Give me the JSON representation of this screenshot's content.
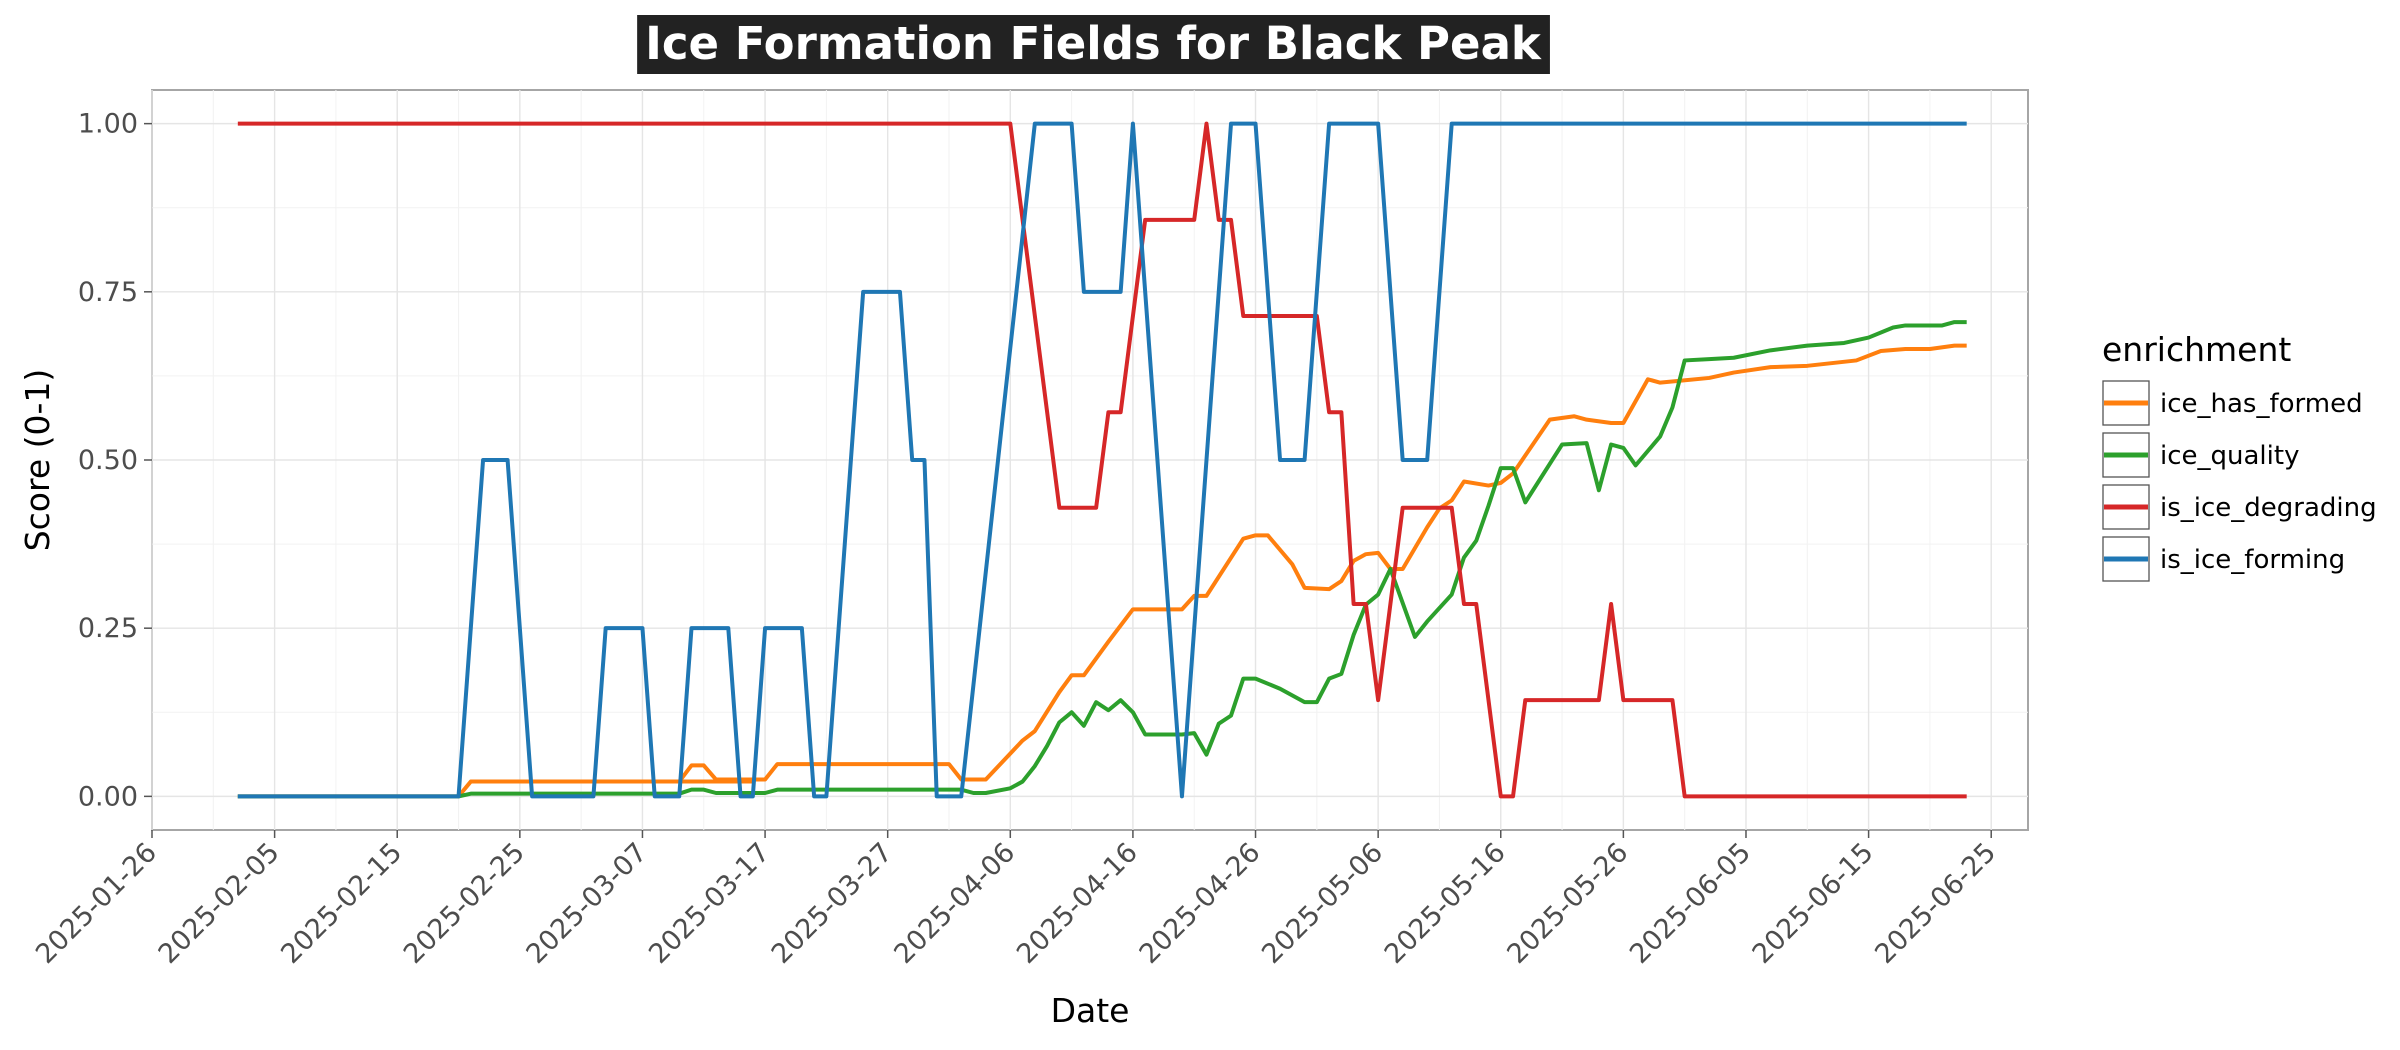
{
  "chart_data": {
    "type": "line",
    "title": "Ice Formation Fields for Black Peak",
    "xlabel": "Date",
    "ylabel": "Score (0-1)",
    "x_type": "date",
    "xlim": [
      "2025-01-26",
      "2025-06-28"
    ],
    "ylim": [
      -0.05,
      1.05
    ],
    "x_ticks": [
      "2025-01-26",
      "2025-02-05",
      "2025-02-15",
      "2025-02-25",
      "2025-03-07",
      "2025-03-17",
      "2025-03-27",
      "2025-04-06",
      "2025-04-16",
      "2025-04-26",
      "2025-05-06",
      "2025-05-16",
      "2025-05-26",
      "2025-06-05",
      "2025-06-15",
      "2025-06-25"
    ],
    "y_ticks": [
      "0.00",
      "0.25",
      "0.50",
      "0.75",
      "1.00"
    ],
    "grid": true,
    "legend_title": "enrichment",
    "legend_position": "right",
    "series": [
      {
        "name": "ice_has_formed",
        "color": "#ff7f0e",
        "points": [
          [
            "2025-02-02",
            0
          ],
          [
            "2025-02-20",
            0
          ],
          [
            "2025-02-21",
            0.022
          ],
          [
            "2025-03-16",
            0.022
          ],
          [
            "2025-03-10",
            0.022
          ],
          [
            "2025-03-11",
            0.046
          ],
          [
            "2025-03-12",
            0.046
          ],
          [
            "2025-03-13",
            0.025
          ],
          [
            "2025-03-17",
            0.025
          ],
          [
            "2025-03-18",
            0.048
          ],
          [
            "2025-04-01",
            0.048
          ],
          [
            "2025-04-02",
            0.025
          ],
          [
            "2025-04-04",
            0.025
          ],
          [
            "2025-04-07",
            0.083
          ],
          [
            "2025-04-08",
            0.097
          ],
          [
            "2025-04-10",
            0.155
          ],
          [
            "2025-04-11",
            0.18
          ],
          [
            "2025-04-12",
            0.18
          ],
          [
            "2025-04-14",
            0.23
          ],
          [
            "2025-04-16",
            0.278
          ],
          [
            "2025-04-20",
            0.278
          ],
          [
            "2025-04-21",
            0.298
          ],
          [
            "2025-04-22",
            0.298
          ],
          [
            "2025-04-25",
            0.383
          ],
          [
            "2025-04-26",
            0.388
          ],
          [
            "2025-04-27",
            0.388
          ],
          [
            "2025-04-29",
            0.345
          ],
          [
            "2025-04-30",
            0.31
          ],
          [
            "2025-05-02",
            0.308
          ],
          [
            "2025-05-03",
            0.32
          ],
          [
            "2025-05-04",
            0.35
          ],
          [
            "2025-05-05",
            0.36
          ],
          [
            "2025-05-06",
            0.362
          ],
          [
            "2025-05-07",
            0.338
          ],
          [
            "2025-05-08",
            0.338
          ],
          [
            "2025-05-10",
            0.4
          ],
          [
            "2025-05-11",
            0.428
          ],
          [
            "2025-05-12",
            0.44
          ],
          [
            "2025-05-13",
            0.468
          ],
          [
            "2025-05-15",
            0.462
          ],
          [
            "2025-05-16",
            0.466
          ],
          [
            "2025-05-17",
            0.48
          ],
          [
            "2025-05-20",
            0.56
          ],
          [
            "2025-05-22",
            0.565
          ],
          [
            "2025-05-23",
            0.56
          ],
          [
            "2025-05-25",
            0.555
          ],
          [
            "2025-05-26",
            0.555
          ],
          [
            "2025-05-28",
            0.62
          ],
          [
            "2025-05-29",
            0.615
          ],
          [
            "2025-06-02",
            0.622
          ],
          [
            "2025-06-04",
            0.63
          ],
          [
            "2025-06-07",
            0.638
          ],
          [
            "2025-06-10",
            0.64
          ],
          [
            "2025-06-14",
            0.648
          ],
          [
            "2025-06-16",
            0.662
          ],
          [
            "2025-06-18",
            0.665
          ],
          [
            "2025-06-20",
            0.665
          ],
          [
            "2025-06-22",
            0.67
          ],
          [
            "2025-06-23",
            0.67
          ]
        ]
      },
      {
        "name": "ice_quality",
        "color": "#2ca02c",
        "points": [
          [
            "2025-02-02",
            0
          ],
          [
            "2025-02-20",
            0
          ],
          [
            "2025-02-21",
            0.004
          ],
          [
            "2025-03-10",
            0.004
          ],
          [
            "2025-03-11",
            0.01
          ],
          [
            "2025-03-12",
            0.01
          ],
          [
            "2025-03-13",
            0.005
          ],
          [
            "2025-03-17",
            0.005
          ],
          [
            "2025-03-18",
            0.01
          ],
          [
            "2025-04-02",
            0.01
          ],
          [
            "2025-04-03",
            0.005
          ],
          [
            "2025-04-04",
            0.005
          ],
          [
            "2025-04-06",
            0.012
          ],
          [
            "2025-04-07",
            0.022
          ],
          [
            "2025-04-08",
            0.045
          ],
          [
            "2025-04-09",
            0.075
          ],
          [
            "2025-04-10",
            0.11
          ],
          [
            "2025-04-11",
            0.125
          ],
          [
            "2025-04-12",
            0.105
          ],
          [
            "2025-04-13",
            0.14
          ],
          [
            "2025-04-14",
            0.128
          ],
          [
            "2025-04-15",
            0.143
          ],
          [
            "2025-04-16",
            0.125
          ],
          [
            "2025-04-17",
            0.092
          ],
          [
            "2025-04-20",
            0.092
          ],
          [
            "2025-04-21",
            0.094
          ],
          [
            "2025-04-22",
            0.062
          ],
          [
            "2025-04-23",
            0.108
          ],
          [
            "2025-04-24",
            0.12
          ],
          [
            "2025-04-25",
            0.175
          ],
          [
            "2025-04-26",
            0.175
          ],
          [
            "2025-04-28",
            0.16
          ],
          [
            "2025-04-30",
            0.14
          ],
          [
            "2025-05-01",
            0.14
          ],
          [
            "2025-05-02",
            0.175
          ],
          [
            "2025-05-03",
            0.182
          ],
          [
            "2025-05-04",
            0.24
          ],
          [
            "2025-05-05",
            0.285
          ],
          [
            "2025-05-06",
            0.3
          ],
          [
            "2025-05-07",
            0.338
          ],
          [
            "2025-05-09",
            0.237
          ],
          [
            "2025-05-10",
            0.26
          ],
          [
            "2025-05-12",
            0.3
          ],
          [
            "2025-05-13",
            0.355
          ],
          [
            "2025-05-14",
            0.38
          ],
          [
            "2025-05-15",
            0.432
          ],
          [
            "2025-05-16",
            0.488
          ],
          [
            "2025-05-17",
            0.488
          ],
          [
            "2025-05-18",
            0.437
          ],
          [
            "2025-05-21",
            0.523
          ],
          [
            "2025-05-23",
            0.525
          ],
          [
            "2025-05-24",
            0.455
          ],
          [
            "2025-05-25",
            0.523
          ],
          [
            "2025-05-26",
            0.518
          ],
          [
            "2025-05-27",
            0.492
          ],
          [
            "2025-05-29",
            0.535
          ],
          [
            "2025-05-30",
            0.578
          ],
          [
            "2025-05-31",
            0.648
          ],
          [
            "2025-06-02",
            0.65
          ],
          [
            "2025-06-04",
            0.652
          ],
          [
            "2025-06-07",
            0.663
          ],
          [
            "2025-06-10",
            0.67
          ],
          [
            "2025-06-13",
            0.674
          ],
          [
            "2025-06-15",
            0.682
          ],
          [
            "2025-06-17",
            0.697
          ],
          [
            "2025-06-18",
            0.7
          ],
          [
            "2025-06-21",
            0.7
          ],
          [
            "2025-06-22",
            0.705
          ],
          [
            "2025-06-23",
            0.705
          ]
        ]
      },
      {
        "name": "is_ice_degrading",
        "color": "#d62728",
        "points": [
          [
            "2025-02-02",
            1
          ],
          [
            "2025-04-06",
            1
          ],
          [
            "2025-04-10",
            0.429
          ],
          [
            "2025-04-13",
            0.429
          ],
          [
            "2025-04-14",
            0.571
          ],
          [
            "2025-04-15",
            0.571
          ],
          [
            "2025-04-17",
            0.857
          ],
          [
            "2025-04-21",
            0.857
          ],
          [
            "2025-04-22",
            1
          ],
          [
            "2025-04-23",
            0.857
          ],
          [
            "2025-04-24",
            0.857
          ],
          [
            "2025-04-25",
            0.714
          ],
          [
            "2025-05-01",
            0.714
          ],
          [
            "2025-05-02",
            0.571
          ],
          [
            "2025-05-03",
            0.571
          ],
          [
            "2025-05-04",
            0.286
          ],
          [
            "2025-05-05",
            0.286
          ],
          [
            "2025-05-06",
            0.143
          ],
          [
            "2025-05-08",
            0.429
          ],
          [
            "2025-05-12",
            0.429
          ],
          [
            "2025-05-13",
            0.286
          ],
          [
            "2025-05-14",
            0.286
          ],
          [
            "2025-05-16",
            0
          ],
          [
            "2025-05-17",
            0
          ],
          [
            "2025-05-18",
            0.143
          ],
          [
            "2025-05-24",
            0.143
          ],
          [
            "2025-05-25",
            0.286
          ],
          [
            "2025-05-26",
            0.143
          ],
          [
            "2025-05-30",
            0.143
          ],
          [
            "2025-05-31",
            0
          ],
          [
            "2025-06-23",
            0
          ]
        ]
      },
      {
        "name": "is_ice_forming",
        "color": "#1f77b4",
        "points": [
          [
            "2025-02-02",
            0
          ],
          [
            "2025-02-20",
            0
          ],
          [
            "2025-02-22",
            0.5
          ],
          [
            "2025-02-24",
            0.5
          ],
          [
            "2025-02-26",
            0
          ],
          [
            "2025-03-03",
            0
          ],
          [
            "2025-03-04",
            0.25
          ],
          [
            "2025-03-07",
            0.25
          ],
          [
            "2025-03-08",
            0
          ],
          [
            "2025-03-10",
            0
          ],
          [
            "2025-03-11",
            0.25
          ],
          [
            "2025-03-14",
            0.25
          ],
          [
            "2025-03-15",
            0
          ],
          [
            "2025-03-16",
            0
          ],
          [
            "2025-03-17",
            0.25
          ],
          [
            "2025-03-20",
            0.25
          ],
          [
            "2025-03-21",
            0
          ],
          [
            "2025-03-22",
            0
          ],
          [
            "2025-03-25",
            0.75
          ],
          [
            "2025-03-28",
            0.75
          ],
          [
            "2025-03-29",
            0.5
          ],
          [
            "2025-03-30",
            0.5
          ],
          [
            "2025-03-31",
            0
          ],
          [
            "2025-04-02",
            0
          ],
          [
            "2025-04-08",
            1
          ],
          [
            "2025-04-11",
            1
          ],
          [
            "2025-04-12",
            0.75
          ],
          [
            "2025-04-15",
            0.75
          ],
          [
            "2025-04-16",
            1
          ],
          [
            "2025-04-20",
            0
          ],
          [
            "2025-04-24",
            1
          ],
          [
            "2025-04-26",
            1
          ],
          [
            "2025-04-28",
            0.5
          ],
          [
            "2025-04-30",
            0.5
          ],
          [
            "2025-05-02",
            1
          ],
          [
            "2025-05-06",
            1
          ],
          [
            "2025-05-08",
            0.5
          ],
          [
            "2025-05-10",
            0.5
          ],
          [
            "2025-05-12",
            1
          ],
          [
            "2025-06-23",
            1
          ]
        ]
      }
    ]
  }
}
